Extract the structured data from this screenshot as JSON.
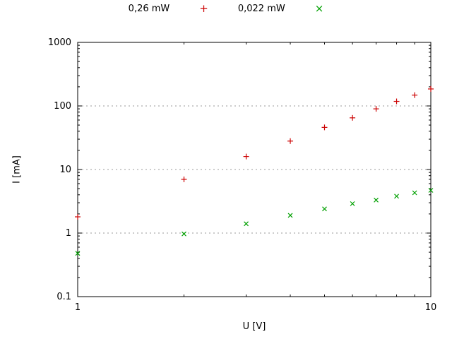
{
  "chart_data": {
    "type": "scatter",
    "title": "",
    "x_axis": {
      "label": "U [V]",
      "scale": "log",
      "min": 1,
      "max": 10,
      "ticks": [
        1,
        10
      ],
      "tick_labels": [
        "1",
        "10"
      ]
    },
    "y_axis": {
      "label": "I [mA]",
      "scale": "log",
      "min": 0.1,
      "max": 1000,
      "ticks": [
        0.1,
        1,
        10,
        100,
        1000
      ],
      "tick_labels": [
        "0.1",
        "1",
        "10",
        "100",
        "1000"
      ]
    },
    "grid": {
      "horizontal_at": [
        1,
        10,
        100
      ],
      "style": "dotted",
      "color": "#9a9a9a"
    },
    "legend": {
      "position": "top-center-outside"
    },
    "series": [
      {
        "name": "0,26 mW",
        "marker": "plus",
        "color": "#cc0000",
        "points": [
          [
            1,
            1.8
          ],
          [
            2,
            7.0
          ],
          [
            3,
            16
          ],
          [
            4,
            28
          ],
          [
            5,
            46
          ],
          [
            6,
            65
          ],
          [
            7,
            90
          ],
          [
            8,
            118
          ],
          [
            9,
            148
          ],
          [
            10,
            185
          ]
        ]
      },
      {
        "name": "0,022 mW",
        "marker": "x",
        "color": "#00a000",
        "points": [
          [
            1,
            0.48
          ],
          [
            2,
            0.97
          ],
          [
            3,
            1.4
          ],
          [
            4,
            1.9
          ],
          [
            5,
            2.4
          ],
          [
            6,
            2.9
          ],
          [
            7,
            3.3
          ],
          [
            8,
            3.8
          ],
          [
            9,
            4.3
          ],
          [
            10,
            4.7
          ]
        ]
      }
    ]
  }
}
